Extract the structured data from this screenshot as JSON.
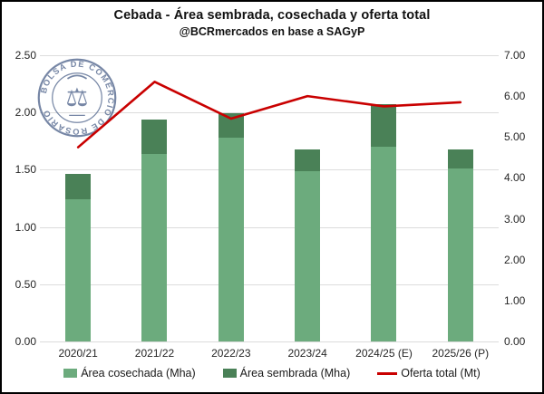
{
  "header": {
    "title": "Cebada - Área sembrada, cosechada y oferta total",
    "subtitle": "@BCRmercados en base a SAGyP"
  },
  "logo": {
    "name": "Bolsa de Comercio de Rosario seal",
    "ring_text": "BOLSA DE COMERCIO DE ROSARIO",
    "emblem": "scales-caduceus",
    "color": "#5f7296"
  },
  "colors": {
    "bar_light_green": "#6CAB7D",
    "bar_dark_green": "#4A8157",
    "line_red": "#C90000",
    "gridline": "#dcdcdc",
    "background": "#ffffff"
  },
  "chart_data": {
    "type": "bar",
    "subtype": "stacked bars with secondary-axis line",
    "title": "Cebada - Área sembrada, cosechada y oferta total",
    "categories": [
      "2020/21",
      "2021/22",
      "2022/23",
      "2023/24",
      "2024/25 (E)",
      "2025/26 (P)"
    ],
    "series": [
      {
        "name": "Área cosechada (Mha)",
        "type": "bar",
        "axis": "left",
        "color": "#6CAB7D",
        "values": [
          1.24,
          1.64,
          1.78,
          1.49,
          1.7,
          1.51
        ]
      },
      {
        "name": "Área sembrada (Mha)",
        "type": "bar",
        "axis": "left",
        "color": "#4A8157",
        "note": "values are bar total height; dark segment drawn above cosechada",
        "values": [
          1.46,
          1.94,
          1.99,
          1.68,
          2.07,
          1.68
        ]
      },
      {
        "name": "Oferta total (Mt)",
        "type": "line",
        "axis": "right",
        "color": "#C90000",
        "values": [
          4.75,
          6.35,
          5.45,
          6.0,
          5.75,
          5.85
        ]
      }
    ],
    "patterned_category_index": 5,
    "left_axis": {
      "min": 0,
      "max": 2.5,
      "step": 0.5,
      "ticks": [
        "0.00",
        "0.50",
        "1.00",
        "1.50",
        "2.00",
        "2.50"
      ]
    },
    "right_axis": {
      "min": 0,
      "max": 7,
      "step": 1,
      "ticks": [
        "0.00",
        "1.00",
        "2.00",
        "3.00",
        "4.00",
        "5.00",
        "6.00",
        "7.00"
      ]
    },
    "grid": "horizontal only",
    "legend_position": "bottom"
  },
  "legend": {
    "items": [
      {
        "label": "Área cosechada (Mha)",
        "swatch": "light-green-rect"
      },
      {
        "label": "Área sembrada (Mha)",
        "swatch": "dark-green-rect"
      },
      {
        "label": "Oferta total (Mt)",
        "swatch": "red-line"
      }
    ]
  }
}
